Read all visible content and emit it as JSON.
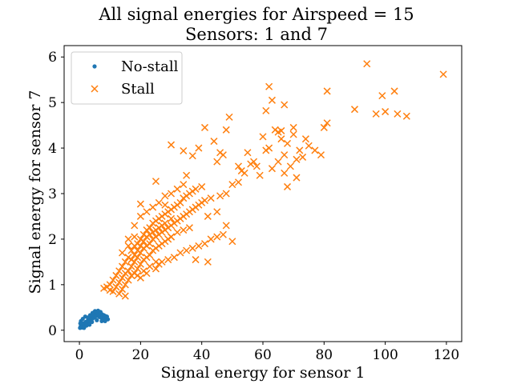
{
  "chart_data": {
    "type": "scatter",
    "title": "All signal energies for Airspeed = 15",
    "subtitle": "Sensors: 1 and 7",
    "xlabel": "Signal energy for sensor 1",
    "ylabel": "Signal energy for sensor 7",
    "xlim": [
      -5,
      125
    ],
    "ylim": [
      -0.25,
      6.25
    ],
    "xticks": [
      0,
      20,
      40,
      60,
      80,
      100,
      120
    ],
    "yticks": [
      0,
      1,
      2,
      3,
      4,
      5,
      6
    ],
    "grid": false,
    "legend_position": "top-left",
    "series": [
      {
        "name": "No-stall",
        "marker": "dot",
        "color": "#1f77b4",
        "points": [
          [
            0.2,
            0.05
          ],
          [
            0.4,
            0.08
          ],
          [
            0.6,
            0.1
          ],
          [
            0.8,
            0.06
          ],
          [
            1.0,
            0.12
          ],
          [
            1.2,
            0.09
          ],
          [
            1.4,
            0.15
          ],
          [
            1.6,
            0.11
          ],
          [
            1.8,
            0.13
          ],
          [
            2.0,
            0.18
          ],
          [
            2.2,
            0.14
          ],
          [
            2.4,
            0.16
          ],
          [
            2.6,
            0.2
          ],
          [
            2.8,
            0.17
          ],
          [
            3.0,
            0.22
          ],
          [
            3.2,
            0.19
          ],
          [
            3.4,
            0.25
          ],
          [
            3.6,
            0.21
          ],
          [
            3.8,
            0.27
          ],
          [
            4.0,
            0.24
          ],
          [
            4.2,
            0.3
          ],
          [
            4.4,
            0.26
          ],
          [
            4.6,
            0.32
          ],
          [
            4.8,
            0.28
          ],
          [
            5.0,
            0.35
          ],
          [
            5.2,
            0.3
          ],
          [
            5.4,
            0.38
          ],
          [
            5.6,
            0.33
          ],
          [
            5.8,
            0.4
          ],
          [
            6.0,
            0.36
          ],
          [
            6.2,
            0.31
          ],
          [
            6.4,
            0.34
          ],
          [
            6.6,
            0.29
          ],
          [
            6.8,
            0.37
          ],
          [
            7.0,
            0.32
          ],
          [
            7.2,
            0.27
          ],
          [
            7.4,
            0.35
          ],
          [
            7.6,
            0.3
          ],
          [
            7.8,
            0.25
          ],
          [
            8.0,
            0.33
          ],
          [
            8.2,
            0.28
          ],
          [
            8.5,
            0.31
          ],
          [
            8.8,
            0.26
          ],
          [
            9.0,
            0.3
          ],
          [
            9.3,
            0.24
          ],
          [
            0.5,
            0.2
          ],
          [
            1.1,
            0.25
          ],
          [
            1.9,
            0.3
          ],
          [
            2.7,
            0.28
          ],
          [
            3.5,
            0.33
          ],
          [
            4.3,
            0.38
          ],
          [
            5.1,
            0.42
          ],
          [
            6.1,
            0.43
          ],
          [
            6.9,
            0.4
          ],
          [
            4.1,
            0.18
          ],
          [
            3.3,
            0.12
          ],
          [
            5.7,
            0.22
          ],
          [
            7.3,
            0.2
          ],
          [
            8.4,
            0.2
          ],
          [
            0.3,
            0.15
          ],
          [
            1.5,
            0.05
          ],
          [
            2.3,
            0.1
          ]
        ]
      },
      {
        "name": "Stall",
        "marker": "x",
        "color": "#ff7f0e",
        "points": [
          [
            8,
            0.92
          ],
          [
            9,
            0.95
          ],
          [
            10,
            1.0
          ],
          [
            10,
            0.88
          ],
          [
            11,
            1.1
          ],
          [
            11,
            0.85
          ],
          [
            12,
            0.95
          ],
          [
            12,
            1.2
          ],
          [
            13,
            1.05
          ],
          [
            13,
            1.3
          ],
          [
            13,
            0.8
          ],
          [
            14,
            1.15
          ],
          [
            14,
            1.4
          ],
          [
            14,
            0.9
          ],
          [
            15,
            1.25
          ],
          [
            15,
            1.5
          ],
          [
            15,
            1.0
          ],
          [
            15,
            0.75
          ],
          [
            16,
            1.3
          ],
          [
            16,
            1.6
          ],
          [
            16,
            1.1
          ],
          [
            17,
            1.4
          ],
          [
            17,
            1.75
          ],
          [
            17,
            1.2
          ],
          [
            17,
            1.55
          ],
          [
            18,
            1.5
          ],
          [
            18,
            1.85
          ],
          [
            18,
            1.25
          ],
          [
            18,
            1.65
          ],
          [
            19,
            1.6
          ],
          [
            19,
            1.9
          ],
          [
            19,
            1.35
          ],
          [
            19,
            1.75
          ],
          [
            20,
            1.7
          ],
          [
            20,
            2.0
          ],
          [
            20,
            1.45
          ],
          [
            20,
            1.85
          ],
          [
            20,
            1.15
          ],
          [
            21,
            1.8
          ],
          [
            21,
            2.1
          ],
          [
            21,
            1.55
          ],
          [
            21,
            1.95
          ],
          [
            22,
            1.85
          ],
          [
            22,
            2.2
          ],
          [
            22,
            1.6
          ],
          [
            22,
            2.05
          ],
          [
            23,
            1.9
          ],
          [
            23,
            2.25
          ],
          [
            23,
            1.65
          ],
          [
            23,
            2.1
          ],
          [
            24,
            2.0
          ],
          [
            24,
            2.35
          ],
          [
            24,
            1.75
          ],
          [
            24,
            2.15
          ],
          [
            25,
            2.05
          ],
          [
            25,
            2.4
          ],
          [
            25,
            1.8
          ],
          [
            25,
            2.2
          ],
          [
            25,
            1.5
          ],
          [
            26,
            2.1
          ],
          [
            26,
            2.45
          ],
          [
            26,
            1.85
          ],
          [
            26,
            2.25
          ],
          [
            27,
            2.15
          ],
          [
            27,
            2.5
          ],
          [
            27,
            1.9
          ],
          [
            27,
            2.3
          ],
          [
            28,
            2.2
          ],
          [
            28,
            2.55
          ],
          [
            28,
            1.95
          ],
          [
            28,
            2.35
          ],
          [
            29,
            2.25
          ],
          [
            29,
            2.6
          ],
          [
            29,
            2.0
          ],
          [
            30,
            2.3
          ],
          [
            30,
            2.65
          ],
          [
            30,
            2.05
          ],
          [
            30,
            2.45
          ],
          [
            31,
            2.35
          ],
          [
            31,
            2.7
          ],
          [
            32,
            2.4
          ],
          [
            32,
            2.75
          ],
          [
            32,
            2.15
          ],
          [
            33,
            2.45
          ],
          [
            33,
            2.8
          ],
          [
            34,
            2.5
          ],
          [
            34,
            2.9
          ],
          [
            34,
            2.2
          ],
          [
            35,
            2.55
          ],
          [
            35,
            2.95
          ],
          [
            36,
            2.6
          ],
          [
            36,
            3.0
          ],
          [
            36,
            2.25
          ],
          [
            37,
            2.65
          ],
          [
            37,
            3.05
          ],
          [
            38,
            2.7
          ],
          [
            38,
            3.1
          ],
          [
            39,
            2.75
          ],
          [
            40,
            2.8
          ],
          [
            40,
            3.15
          ],
          [
            41,
            2.85
          ],
          [
            42,
            2.5
          ],
          [
            43,
            2.9
          ],
          [
            45,
            2.6
          ],
          [
            46,
            2.95
          ],
          [
            48,
            3.0
          ],
          [
            50,
            3.2
          ],
          [
            52,
            3.25
          ],
          [
            16,
            2.0
          ],
          [
            18,
            2.3
          ],
          [
            20,
            2.5
          ],
          [
            22,
            2.6
          ],
          [
            24,
            2.7
          ],
          [
            26,
            2.8
          ],
          [
            28,
            2.95
          ],
          [
            30,
            3.0
          ],
          [
            32,
            3.1
          ],
          [
            34,
            3.2
          ],
          [
            19,
            1.2
          ],
          [
            21,
            1.3
          ],
          [
            23,
            1.4
          ],
          [
            25,
            1.35
          ],
          [
            27,
            1.5
          ],
          [
            29,
            1.55
          ],
          [
            31,
            1.6
          ],
          [
            33,
            1.7
          ],
          [
            35,
            1.75
          ],
          [
            37,
            1.8
          ],
          [
            39,
            1.85
          ],
          [
            41,
            1.9
          ],
          [
            43,
            2.0
          ],
          [
            45,
            2.05
          ],
          [
            47,
            2.1
          ],
          [
            14,
            1.7
          ],
          [
            16,
            1.85
          ],
          [
            18,
            2.05
          ],
          [
            22,
            1.25
          ],
          [
            26,
            1.45
          ],
          [
            38,
            1.55
          ],
          [
            42,
            1.5
          ],
          [
            48,
            2.3
          ],
          [
            50,
            1.95
          ],
          [
            25,
            3.27
          ],
          [
            28,
            2.75
          ],
          [
            35,
            3.4
          ],
          [
            20,
            2.77
          ],
          [
            30,
            2.05
          ],
          [
            30,
            4.07
          ],
          [
            34,
            3.94
          ],
          [
            37,
            3.83
          ],
          [
            39,
            4.0
          ],
          [
            41,
            4.45
          ],
          [
            44,
            4.15
          ],
          [
            45,
            3.7
          ],
          [
            46,
            3.9
          ],
          [
            47,
            3.85
          ],
          [
            48,
            4.4
          ],
          [
            49,
            4.68
          ],
          [
            52,
            3.6
          ],
          [
            53,
            3.5
          ],
          [
            54,
            3.45
          ],
          [
            55,
            3.9
          ],
          [
            56,
            3.65
          ],
          [
            57,
            3.7
          ],
          [
            58,
            3.6
          ],
          [
            59,
            3.4
          ],
          [
            60,
            4.25
          ],
          [
            61,
            4.82
          ],
          [
            61,
            3.95
          ],
          [
            62,
            5.35
          ],
          [
            62,
            4.0
          ],
          [
            63,
            3.55
          ],
          [
            63,
            5.05
          ],
          [
            64,
            4.4
          ],
          [
            65,
            4.35
          ],
          [
            65,
            3.7
          ],
          [
            66,
            4.38
          ],
          [
            66,
            4.2
          ],
          [
            67,
            4.95
          ],
          [
            67,
            3.45
          ],
          [
            67,
            3.85
          ],
          [
            68,
            3.15
          ],
          [
            68,
            4.1
          ],
          [
            69,
            3.6
          ],
          [
            70,
            4.3
          ],
          [
            70,
            4.45
          ],
          [
            71,
            3.35
          ],
          [
            71,
            3.75
          ],
          [
            72,
            3.95
          ],
          [
            73,
            3.8
          ],
          [
            74,
            4.2
          ],
          [
            75,
            4.05
          ],
          [
            77,
            3.95
          ],
          [
            79,
            3.85
          ],
          [
            80,
            4.45
          ],
          [
            81,
            5.25
          ],
          [
            81,
            4.55
          ],
          [
            90,
            4.85
          ],
          [
            94,
            5.85
          ],
          [
            97,
            4.75
          ],
          [
            99,
            5.15
          ],
          [
            100,
            4.8
          ],
          [
            103,
            5.25
          ],
          [
            104,
            4.75
          ],
          [
            107,
            4.7
          ],
          [
            119,
            5.62
          ]
        ]
      }
    ]
  }
}
